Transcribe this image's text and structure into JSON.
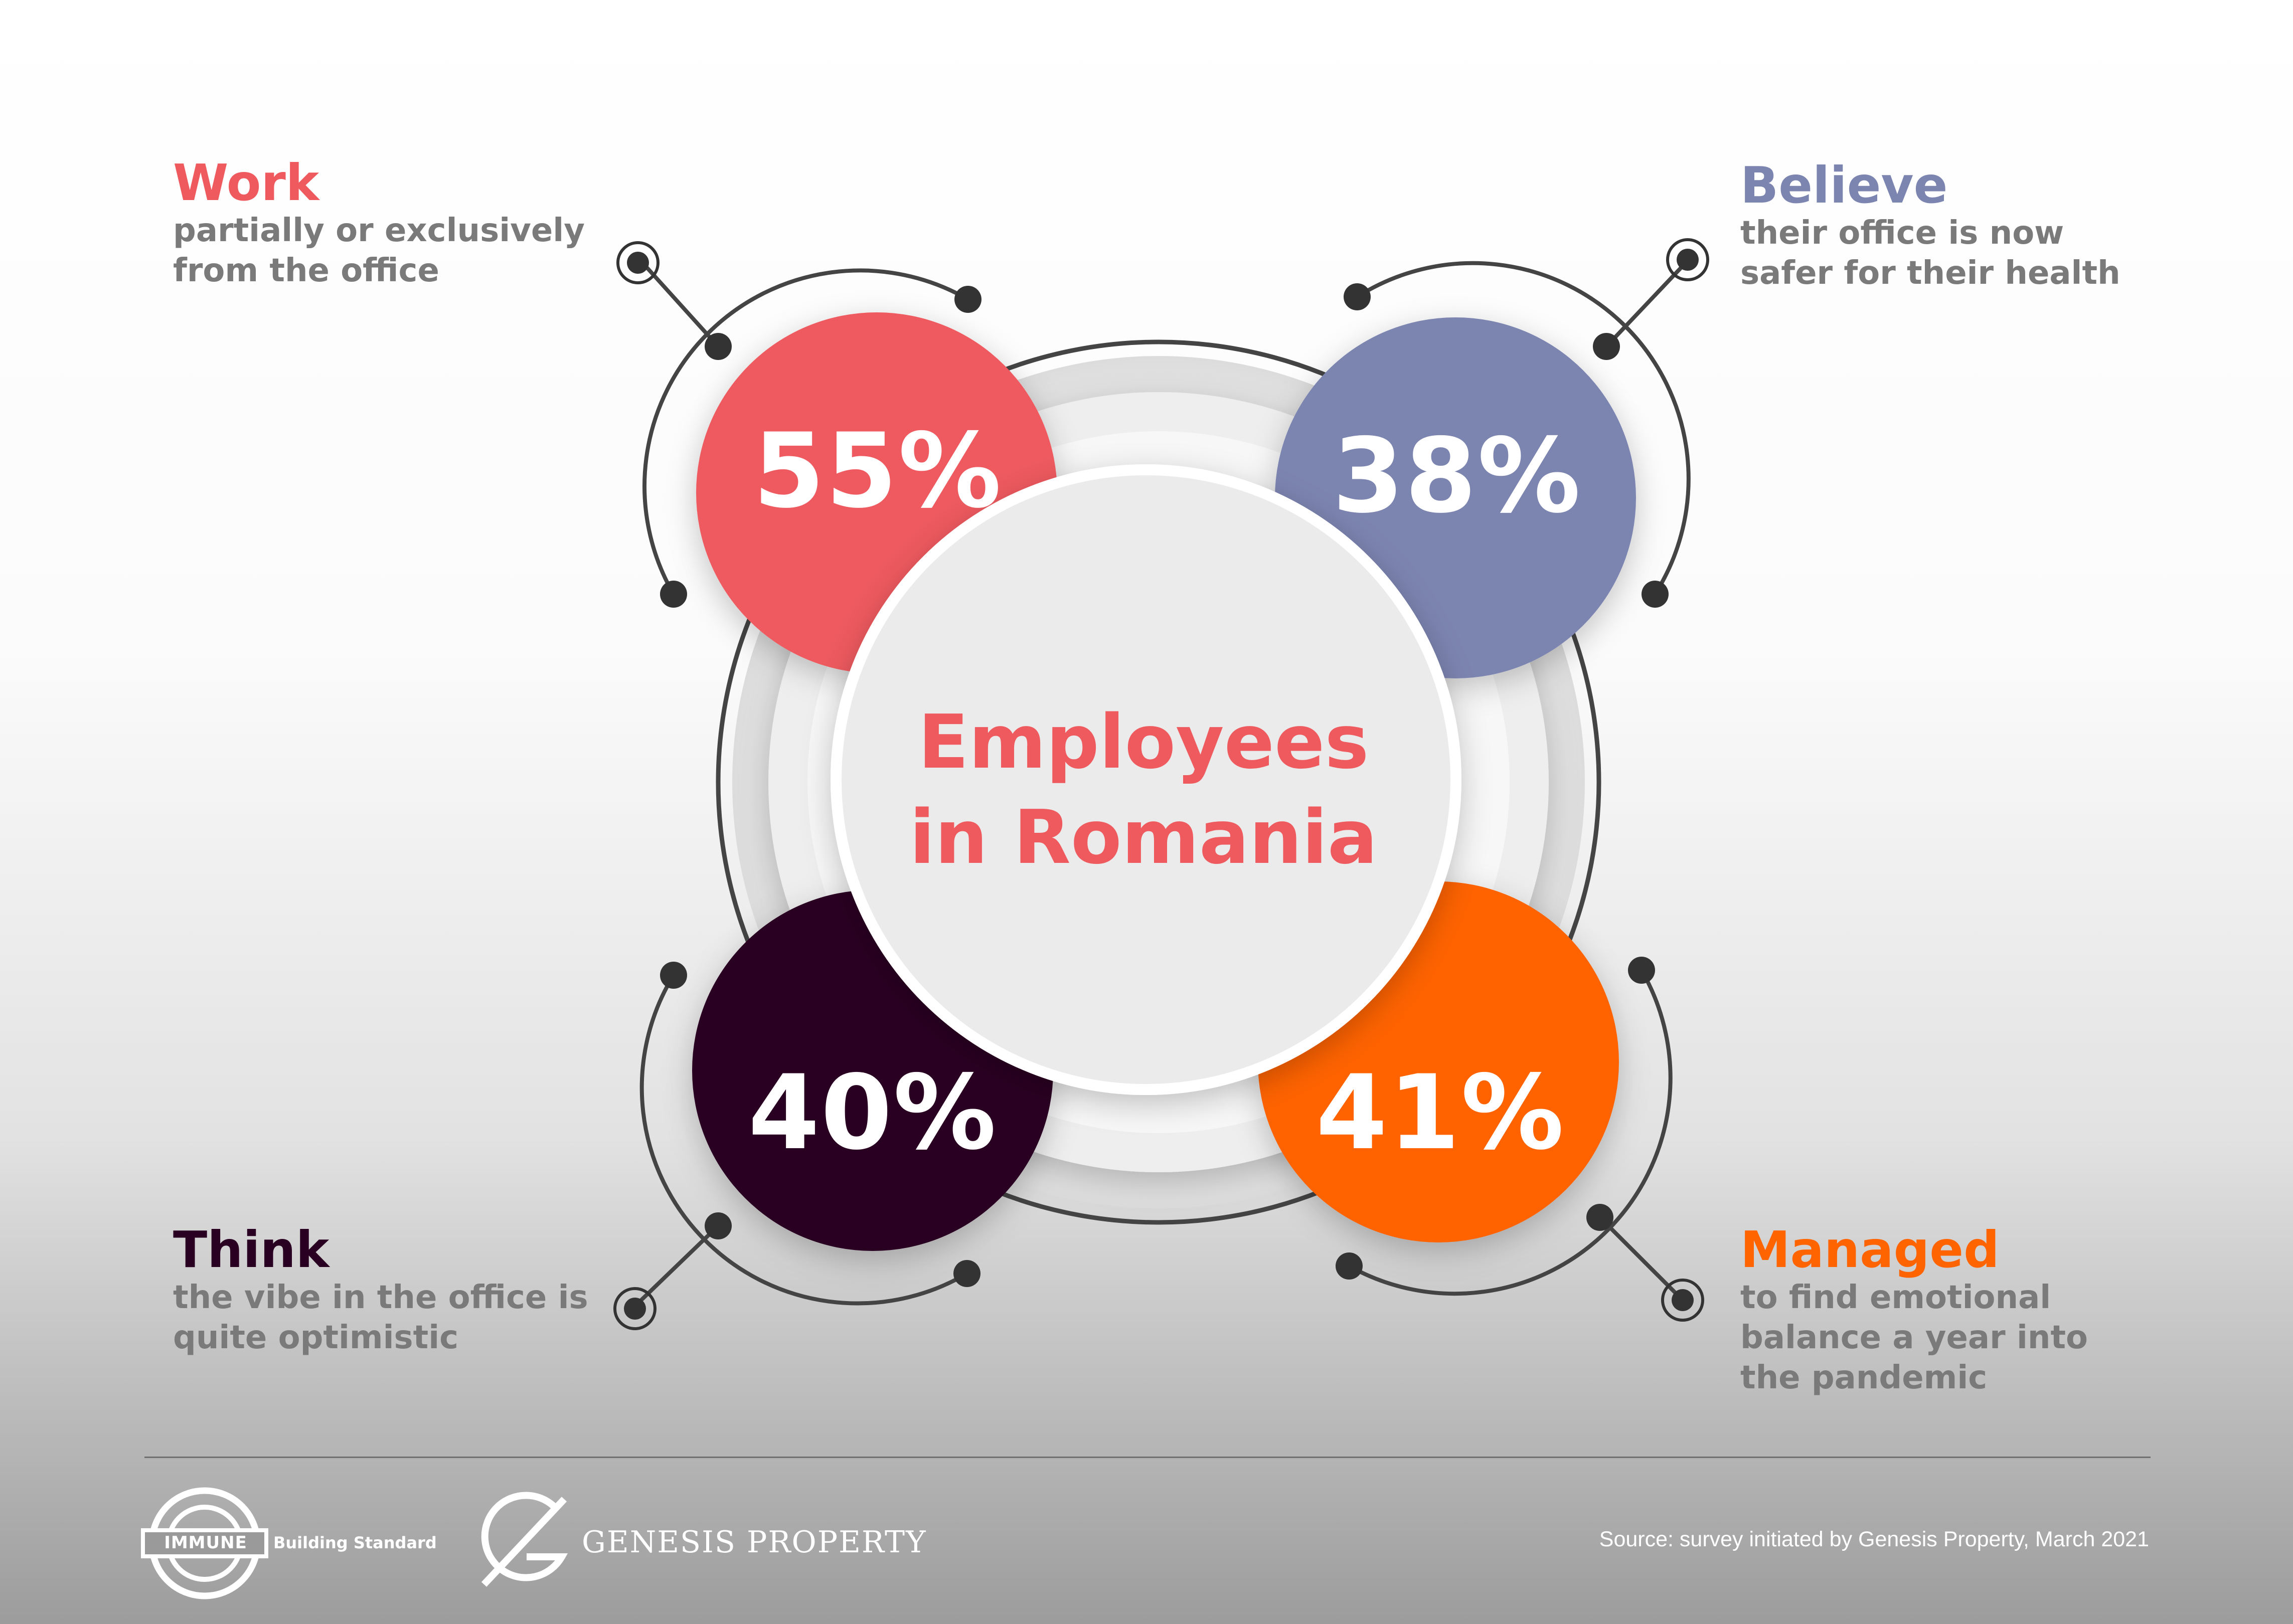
{
  "center": {
    "line1": "Employees",
    "line2": "in Romania"
  },
  "stats": [
    {
      "value": "55%",
      "heading": "Work",
      "desc1": "partially or exclusively",
      "desc2": "from the office",
      "color": "#ee5a5e"
    },
    {
      "value": "38%",
      "heading": "Believe",
      "desc1": "their office is now",
      "desc2": "safer for their health",
      "color": "#7c84b0"
    },
    {
      "value": "40%",
      "heading": "Think",
      "desc1": "the vibe in the office is",
      "desc2": "quite optimistic",
      "color": "#2a0022"
    },
    {
      "value": "41%",
      "heading": "Managed",
      "desc1": "to find emotional",
      "desc2": "balance a year into",
      "desc3": "the pandemic",
      "color": "#ff6400"
    }
  ],
  "footer": {
    "immune_logo_text": "IMMUNE",
    "immune_tagline": "Building Standard",
    "genesis_logo_text": "GENESIS PROPERTY",
    "source": "Source: survey initiated by Genesis Property, March 2021"
  }
}
